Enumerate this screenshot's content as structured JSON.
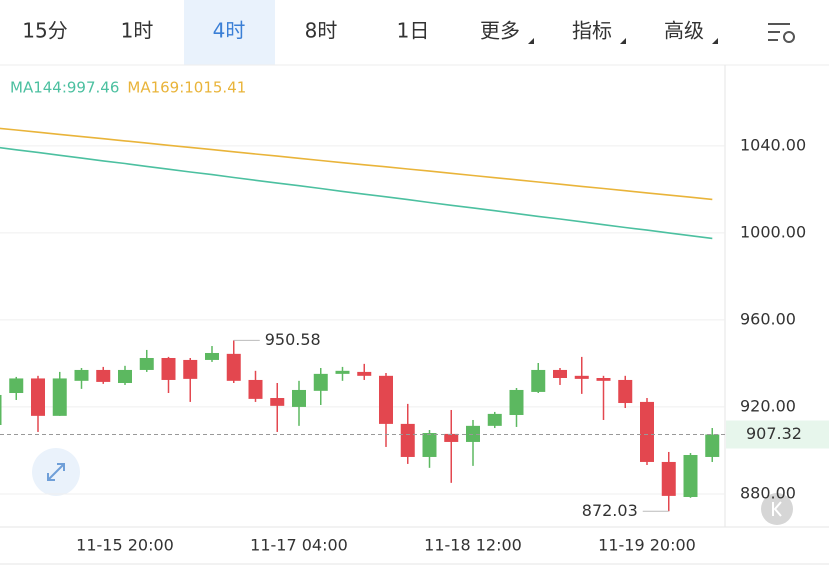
{
  "tabs": [
    "15分",
    "1时",
    "4时",
    "8时",
    "1日",
    "更多",
    "指标",
    "高级"
  ],
  "selected_tab": 2,
  "chart_data": {
    "type": "candlestick",
    "categories": [
      null,
      null,
      null,
      null,
      null,
      null,
      "11-15 20:00",
      null,
      null,
      null,
      null,
      null,
      null,
      null,
      "11-17 04:00",
      null,
      null,
      null,
      null,
      null,
      null,
      null,
      "11-18 12:00",
      null,
      null,
      null,
      null,
      null,
      null,
      null,
      "11-19 20:00",
      null,
      null,
      null
    ],
    "open": [
      911.7,
      926.4,
      933.1,
      915.9,
      932.0,
      937.0,
      931.0,
      937.0,
      942.5,
      941.6,
      941.6,
      944.4,
      932.4,
      924.1,
      920.0,
      927.4,
      935.2,
      936.1,
      934.3,
      912.2,
      897.0,
      907.6,
      903.9,
      911.3,
      916.3,
      926.9,
      937.0,
      934.3,
      933.3,
      932.4,
      922.3,
      894.7,
      878.6,
      897.0
    ],
    "high": [
      927.0,
      933.8,
      934.3,
      936.1,
      937.9,
      938.4,
      938.9,
      946.2,
      943.0,
      942.5,
      948.0,
      950.58,
      936.6,
      931.0,
      932.0,
      937.9,
      938.4,
      939.8,
      935.6,
      921.4,
      909.4,
      918.6,
      914.0,
      917.7,
      928.7,
      940.2,
      937.9,
      943.0,
      934.3,
      934.3,
      924.1,
      899.3,
      898.8,
      910.3
    ],
    "low": [
      910.0,
      923.2,
      908.5,
      915.9,
      928.3,
      930.6,
      930.1,
      936.1,
      926.4,
      922.3,
      940.7,
      931.0,
      922.3,
      908.5,
      911.3,
      920.9,
      932.0,
      932.4,
      901.6,
      893.8,
      892.0,
      885.1,
      892.9,
      910.3,
      910.8,
      926.4,
      930.1,
      926.0,
      914.0,
      919.5,
      893.3,
      872.03,
      878.2,
      894.7
    ],
    "close": [
      925.5,
      933.1,
      915.9,
      933.1,
      937.0,
      931.5,
      937.0,
      942.5,
      932.4,
      932.9,
      944.8,
      932.0,
      923.7,
      920.5,
      927.8,
      935.2,
      936.6,
      934.3,
      912.2,
      897.0,
      908.0,
      903.9,
      911.3,
      916.8,
      927.8,
      937.0,
      933.3,
      932.9,
      932.0,
      921.8,
      894.7,
      879.1,
      897.9,
      907.32
    ],
    "up_color": "#5cb860",
    "down_color": "#e3474f",
    "series": [
      {
        "name": "MA144",
        "legend": "MA144:997.46",
        "color": "#4cc0a0",
        "values": [
          1039.5,
          1038.2,
          1037.0,
          1035.7,
          1034.4,
          1033.1,
          1031.9,
          1030.6,
          1029.3,
          1028.0,
          1026.8,
          1025.5,
          1024.2,
          1022.9,
          1021.7,
          1020.4,
          1019.1,
          1017.8,
          1016.6,
          1015.3,
          1014.0,
          1012.7,
          1011.5,
          1010.2,
          1008.9,
          1007.6,
          1006.4,
          1005.1,
          1003.8,
          1002.5,
          1001.3,
          1000.0,
          998.7,
          997.46
        ]
      },
      {
        "name": "MA169",
        "legend": "MA169:1015.41",
        "color": "#e9b43a",
        "values": [
          1048.3,
          1047.3,
          1046.3,
          1045.3,
          1044.3,
          1043.3,
          1042.3,
          1041.3,
          1040.3,
          1039.3,
          1038.3,
          1037.3,
          1036.3,
          1035.3,
          1034.3,
          1033.3,
          1032.3,
          1031.3,
          1030.4,
          1029.4,
          1028.4,
          1027.4,
          1026.4,
          1025.4,
          1024.4,
          1023.4,
          1022.4,
          1021.4,
          1020.4,
          1019.4,
          1018.4,
          1017.4,
          1016.4,
          1015.41
        ]
      }
    ],
    "ylim": [
      864.8,
      1074.9
    ],
    "yticks": [
      {
        "value": 880,
        "label": "880.00"
      },
      {
        "value": 920,
        "label": "920.00"
      },
      {
        "value": 960,
        "label": "960.00"
      },
      {
        "value": 1000,
        "label": "1000.00"
      },
      {
        "value": 1040,
        "label": "1040.00"
      }
    ],
    "grid": true
  }
}
